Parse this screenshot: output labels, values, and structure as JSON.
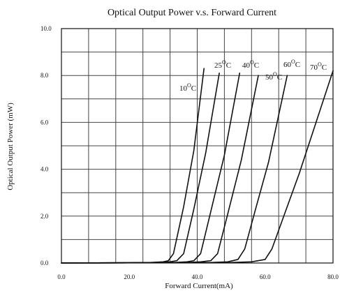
{
  "chart_data": {
    "type": "line",
    "title": "Optical Output Power v.s. Forward Current",
    "xlabel": "Forward Current(mA)",
    "ylabel": "Optical Output Power (mW)",
    "xlim": [
      0,
      80
    ],
    "ylim": [
      0,
      10
    ],
    "x_ticks": [
      "0.0",
      "20.0",
      "40.0",
      "60.0",
      "80.0"
    ],
    "y_ticks": [
      "0.0",
      "2.0",
      "4.0",
      "6.0",
      "8.0",
      "10.0"
    ],
    "grid": true,
    "series": [
      {
        "name": "10°C",
        "label_parts": [
          "10",
          "O",
          "C"
        ],
        "x": [
          0,
          10,
          20,
          26,
          30,
          31.5,
          33,
          36,
          39,
          42
        ],
        "y": [
          0,
          0.005,
          0.01,
          0.02,
          0.05,
          0.1,
          0.4,
          2.4,
          4.8,
          8.3
        ]
      },
      {
        "name": "25°C",
        "label_parts": [
          "25",
          "O",
          "C"
        ],
        "x": [
          0,
          10,
          20,
          28,
          32,
          34,
          36,
          39,
          42.5,
          46.5
        ],
        "y": [
          0,
          0.005,
          0.01,
          0.02,
          0.05,
          0.1,
          0.4,
          2.3,
          4.7,
          8.1
        ]
      },
      {
        "name": "40°C",
        "label_parts": [
          "40",
          "O",
          "C"
        ],
        "x": [
          0,
          10,
          20,
          33,
          37,
          39,
          41,
          44,
          48,
          52.5
        ],
        "y": [
          0,
          0.005,
          0.01,
          0.02,
          0.05,
          0.1,
          0.4,
          2.2,
          4.6,
          8.1
        ]
      },
      {
        "name": "50°C",
        "label_parts": [
          "50",
          "O",
          "C"
        ],
        "x": [
          0,
          10,
          20,
          37,
          41,
          44,
          46,
          49,
          53,
          58
        ],
        "y": [
          0,
          0.005,
          0.01,
          0.02,
          0.05,
          0.1,
          0.4,
          2.1,
          4.4,
          8.0
        ]
      },
      {
        "name": "60°C",
        "label_parts": [
          "60",
          "O",
          "C"
        ],
        "x": [
          0,
          10,
          20,
          44,
          49,
          52,
          54,
          57,
          61,
          66.5
        ],
        "y": [
          0,
          0.005,
          0.01,
          0.02,
          0.05,
          0.15,
          0.6,
          2.2,
          4.3,
          8.0
        ]
      },
      {
        "name": "70°C",
        "label_parts": [
          "70",
          "O",
          "C"
        ],
        "x": [
          0,
          10,
          20,
          50,
          56,
          60,
          62,
          65,
          70,
          80
        ],
        "y": [
          0,
          0.005,
          0.01,
          0.02,
          0.05,
          0.15,
          0.6,
          1.8,
          3.8,
          8.2
        ]
      }
    ]
  }
}
